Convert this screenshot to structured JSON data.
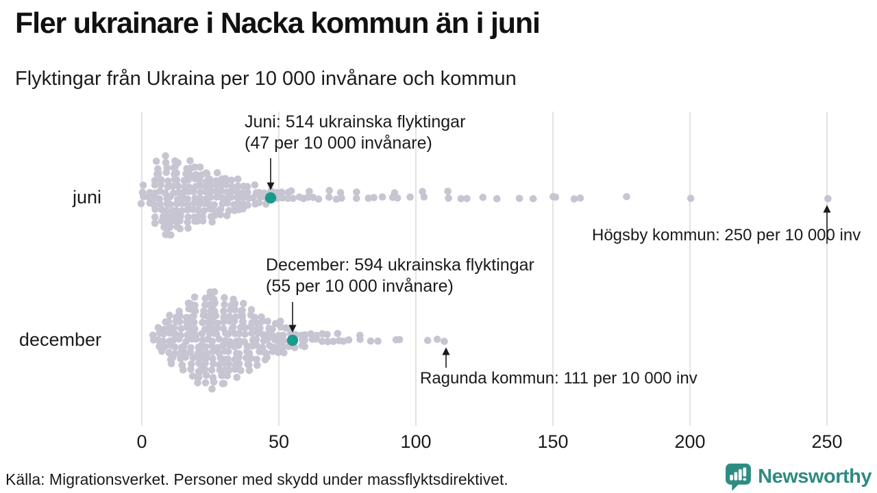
{
  "header": {
    "title": "Fler ukrainare i Nacka kommun än i juni",
    "subtitle": "Flyktingar från Ukraina per 10 000 invånare och kommun"
  },
  "chart_data": {
    "type": "scatter",
    "variant": "beeswarm",
    "title": "Fler ukrainare i Nacka kommun än i juni",
    "subtitle": "Flyktingar från Ukraina per 10 000 invånare och kommun",
    "x_axis": {
      "ticks": [
        0,
        50,
        100,
        150,
        200,
        250
      ],
      "range": [
        0,
        255
      ],
      "gridlines": true
    },
    "colors": {
      "dot": "#c6c5d1",
      "highlight": "#1a9a8a",
      "gridline": "#dadada",
      "arrow": "#1a1a1a",
      "text": "#1a1a1a"
    },
    "series": [
      {
        "name": "juni",
        "label": "juni",
        "highlight": {
          "refugees": 514,
          "per_10000": 47
        },
        "bins": [
          [
            0,
            4
          ],
          [
            3,
            3
          ],
          [
            5,
            9
          ],
          [
            7,
            13
          ],
          [
            9,
            14
          ],
          [
            11,
            13
          ],
          [
            13,
            12
          ],
          [
            15,
            11
          ],
          [
            17,
            12
          ],
          [
            19,
            10
          ],
          [
            21,
            10
          ],
          [
            23,
            9
          ],
          [
            25,
            9
          ],
          [
            27,
            8
          ],
          [
            29,
            7
          ],
          [
            31,
            7
          ],
          [
            33,
            6
          ],
          [
            35,
            6
          ],
          [
            37,
            5
          ],
          [
            39,
            4
          ],
          [
            41,
            4
          ],
          [
            43,
            3
          ],
          [
            45,
            3
          ],
          [
            47,
            2
          ],
          [
            49,
            2
          ],
          [
            51,
            2
          ],
          [
            53,
            2
          ],
          [
            55,
            2
          ],
          [
            57,
            1
          ],
          [
            59,
            1
          ],
          [
            61,
            2
          ],
          [
            63,
            1
          ],
          [
            65,
            1
          ],
          [
            68,
            2
          ],
          [
            71,
            1
          ],
          [
            73,
            2
          ],
          [
            78,
            2
          ],
          [
            83,
            1
          ],
          [
            85,
            1
          ],
          [
            88,
            1
          ],
          [
            91,
            1
          ],
          [
            93,
            2
          ],
          [
            98,
            1
          ],
          [
            103,
            2
          ],
          [
            112,
            2
          ],
          [
            116,
            1
          ],
          [
            118,
            1
          ],
          [
            124,
            1
          ],
          [
            129,
            1
          ],
          [
            138,
            1
          ],
          [
            143,
            1
          ],
          [
            150,
            1
          ],
          [
            151,
            1
          ],
          [
            158,
            1
          ],
          [
            160,
            1
          ],
          [
            177,
            1
          ],
          [
            200,
            1
          ],
          [
            250,
            1
          ]
        ]
      },
      {
        "name": "december",
        "label": "december",
        "highlight": {
          "refugees": 594,
          "per_10000": 55
        },
        "bins": [
          [
            4,
            2
          ],
          [
            6,
            4
          ],
          [
            8,
            6
          ],
          [
            10,
            8
          ],
          [
            12,
            9
          ],
          [
            14,
            10
          ],
          [
            16,
            12
          ],
          [
            18,
            13
          ],
          [
            20,
            14
          ],
          [
            22,
            15
          ],
          [
            24,
            16
          ],
          [
            26,
            17
          ],
          [
            28,
            16
          ],
          [
            30,
            15
          ],
          [
            32,
            14
          ],
          [
            34,
            13
          ],
          [
            36,
            12
          ],
          [
            38,
            11
          ],
          [
            40,
            10
          ],
          [
            42,
            9
          ],
          [
            44,
            8
          ],
          [
            46,
            7
          ],
          [
            48,
            6
          ],
          [
            50,
            6
          ],
          [
            52,
            5
          ],
          [
            54,
            4
          ],
          [
            56,
            3
          ],
          [
            58,
            3
          ],
          [
            60,
            3
          ],
          [
            62,
            2
          ],
          [
            64,
            2
          ],
          [
            66,
            2
          ],
          [
            68,
            2
          ],
          [
            70,
            1
          ],
          [
            72,
            2
          ],
          [
            74,
            1
          ],
          [
            76,
            1
          ],
          [
            80,
            2
          ],
          [
            83,
            1
          ],
          [
            86,
            1
          ],
          [
            93,
            1
          ],
          [
            94,
            1
          ],
          [
            104,
            1
          ],
          [
            108,
            1
          ],
          [
            111,
            1
          ]
        ]
      }
    ],
    "annotations": [
      {
        "id": "juni-highlight",
        "line1": "Juni: 514 ukrainska flyktingar",
        "line2": "(47 per 10 000 invånare)",
        "target_value": 47,
        "series": "juni"
      },
      {
        "id": "december-highlight",
        "line1": "December: 594 ukrainska flyktingar",
        "line2": "(55 per 10 000 invånare)",
        "target_value": 55,
        "series": "december"
      },
      {
        "id": "hogsby",
        "text": "Högsby kommun: 250 per 10 000 inv",
        "target_value": 250,
        "series": "juni"
      },
      {
        "id": "ragunda",
        "text": "Ragunda kommun: 111 per 10 000 inv",
        "target_value": 111,
        "series": "december"
      }
    ]
  },
  "footer": {
    "source": "Källa: Migrationsverket. Personer med skydd under massflyktsdirektivet.",
    "brand": {
      "name": "Newsworthy",
      "color": "#2e8b82",
      "icon": "bar-chart-speech-bubble-icon"
    }
  }
}
